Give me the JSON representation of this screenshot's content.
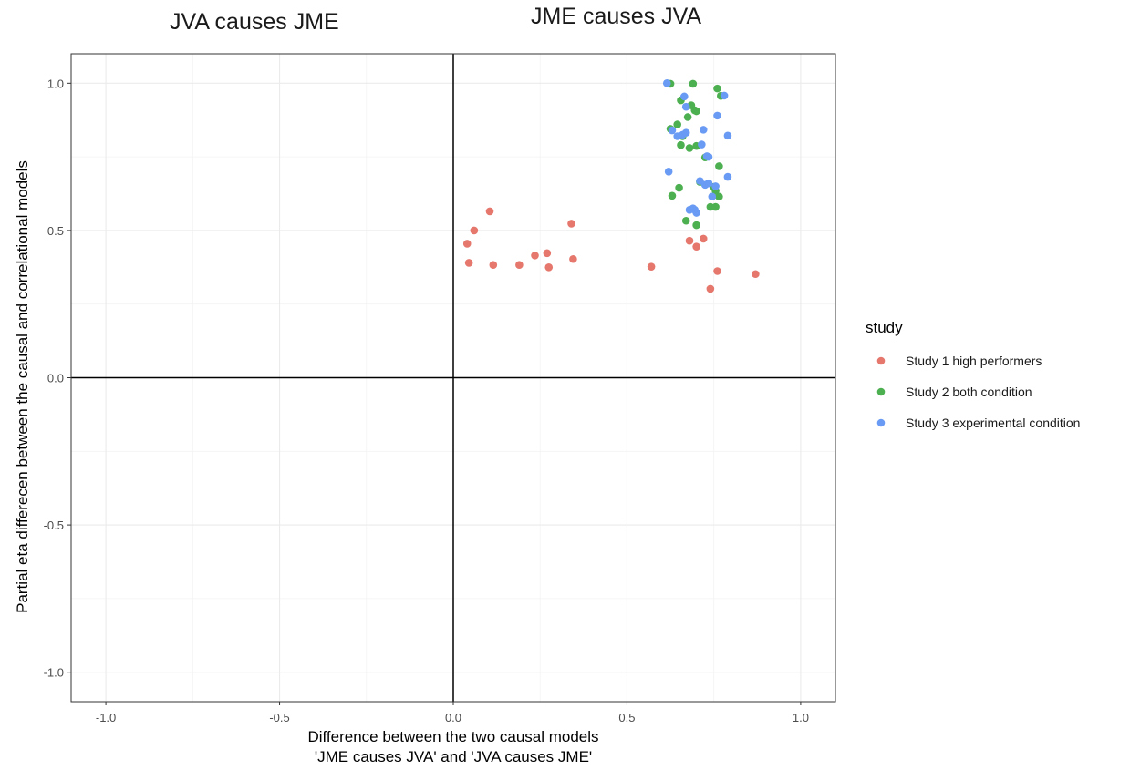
{
  "chart_data": {
    "type": "scatter",
    "quadrant_titles": {
      "left": "JVA causes JME",
      "right": "JME causes JVA"
    },
    "xlabel_line1": "Difference between the two causal models",
    "xlabel_line2": "'JME causes JVA' and 'JVA causes JME'",
    "ylabel": "Partial eta differecen between the causal and correlational models",
    "xlim": [
      -1.1,
      1.1
    ],
    "ylim": [
      -1.1,
      1.1
    ],
    "x_ticks": [
      -1.0,
      -0.5,
      0.0,
      0.5,
      1.0
    ],
    "x_tick_labels": [
      "-1.0",
      "-0.5",
      "0.0",
      "0.5",
      "1.0"
    ],
    "y_ticks": [
      1.0,
      0.5,
      0.0,
      -0.5,
      -1.0
    ],
    "y_tick_labels": [
      "1.0",
      "0.5",
      "0.0",
      "-0.5",
      "-1.0"
    ],
    "grid": true,
    "reference_lines": {
      "x": 0,
      "y": 0
    },
    "legend": {
      "title": "study",
      "position": "right"
    },
    "series": [
      {
        "name": "Study 1 high performers",
        "color": "#e5776d",
        "points": [
          [
            0.04,
            0.455
          ],
          [
            0.045,
            0.39
          ],
          [
            0.06,
            0.5
          ],
          [
            0.105,
            0.565
          ],
          [
            0.115,
            0.383
          ],
          [
            0.19,
            0.383
          ],
          [
            0.235,
            0.415
          ],
          [
            0.27,
            0.423
          ],
          [
            0.275,
            0.375
          ],
          [
            0.34,
            0.523
          ],
          [
            0.345,
            0.403
          ],
          [
            0.57,
            0.377
          ],
          [
            0.68,
            0.465
          ],
          [
            0.7,
            0.445
          ],
          [
            0.72,
            0.472
          ],
          [
            0.74,
            0.302
          ],
          [
            0.76,
            0.362
          ],
          [
            0.87,
            0.352
          ]
        ]
      },
      {
        "name": "Study 2 both condition",
        "color": "#4caf50",
        "points": [
          [
            0.625,
            0.998
          ],
          [
            0.69,
            0.998
          ],
          [
            0.76,
            0.982
          ],
          [
            0.77,
            0.957
          ],
          [
            0.655,
            0.942
          ],
          [
            0.685,
            0.925
          ],
          [
            0.695,
            0.908
          ],
          [
            0.7,
            0.905
          ],
          [
            0.675,
            0.885
          ],
          [
            0.645,
            0.86
          ],
          [
            0.625,
            0.845
          ],
          [
            0.66,
            0.82
          ],
          [
            0.655,
            0.79
          ],
          [
            0.7,
            0.787
          ],
          [
            0.68,
            0.78
          ],
          [
            0.725,
            0.748
          ],
          [
            0.765,
            0.718
          ],
          [
            0.71,
            0.665
          ],
          [
            0.75,
            0.648
          ],
          [
            0.755,
            0.635
          ],
          [
            0.65,
            0.645
          ],
          [
            0.63,
            0.618
          ],
          [
            0.765,
            0.615
          ],
          [
            0.74,
            0.58
          ],
          [
            0.755,
            0.58
          ],
          [
            0.67,
            0.533
          ],
          [
            0.7,
            0.518
          ]
        ]
      },
      {
        "name": "Study 3 experimental condition",
        "color": "#6a9bf4",
        "points": [
          [
            0.615,
            1.0
          ],
          [
            0.78,
            0.958
          ],
          [
            0.665,
            0.955
          ],
          [
            0.67,
            0.92
          ],
          [
            0.76,
            0.89
          ],
          [
            0.63,
            0.84
          ],
          [
            0.72,
            0.842
          ],
          [
            0.67,
            0.832
          ],
          [
            0.66,
            0.825
          ],
          [
            0.645,
            0.82
          ],
          [
            0.79,
            0.822
          ],
          [
            0.715,
            0.792
          ],
          [
            0.73,
            0.752
          ],
          [
            0.735,
            0.75
          ],
          [
            0.62,
            0.7
          ],
          [
            0.79,
            0.682
          ],
          [
            0.71,
            0.668
          ],
          [
            0.725,
            0.655
          ],
          [
            0.735,
            0.66
          ],
          [
            0.755,
            0.65
          ],
          [
            0.745,
            0.615
          ],
          [
            0.68,
            0.57
          ],
          [
            0.69,
            0.575
          ],
          [
            0.7,
            0.56
          ],
          [
            0.695,
            0.57
          ]
        ]
      }
    ]
  }
}
